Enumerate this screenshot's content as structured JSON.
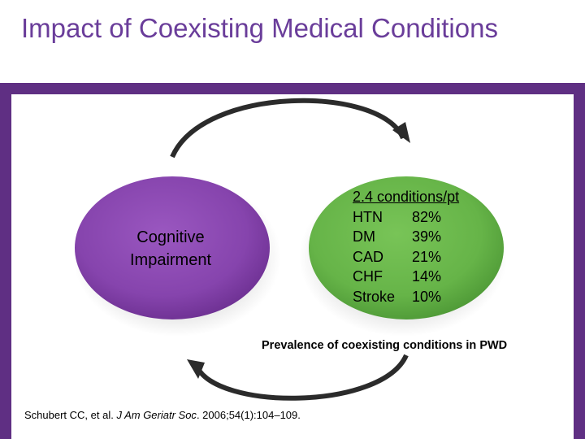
{
  "slide": {
    "title": "Impact of Coexisting Medical Conditions"
  },
  "diagram": {
    "left_circle": {
      "color": "#8a47b0",
      "label_line1": "Cognitive",
      "label_line2": "Impairment"
    },
    "right_circle": {
      "color": "#69b74a",
      "heading": "2.4 conditions/pt",
      "conditions": [
        {
          "name": "HTN",
          "value": "82%"
        },
        {
          "name": "DM",
          "value": "39%"
        },
        {
          "name": "CAD",
          "value": "21%"
        },
        {
          "name": "CHF",
          "value": "14%"
        },
        {
          "name": "Stroke",
          "value": "10%"
        }
      ]
    },
    "caption": "Prevalence of coexisting conditions in PWD"
  },
  "citation": {
    "authors": "Schubert CC, et al. ",
    "journal": "J Am Geriatr Soc",
    "details": ". 2006;54(1):104–109."
  },
  "colors": {
    "title": "#6a3d9a",
    "frame": "#5f2f83",
    "arrow": "#2b2b2b"
  }
}
